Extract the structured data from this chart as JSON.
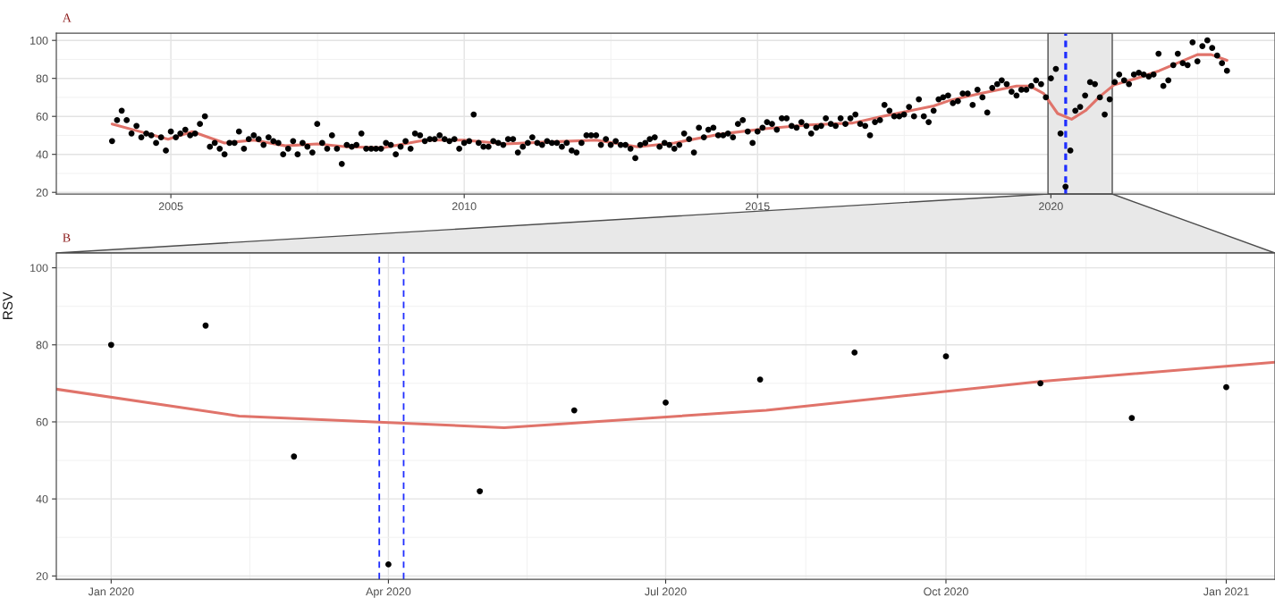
{
  "chart_data": [
    {
      "type": "scatter",
      "title": "A",
      "series": [
        {
          "color": "#000000",
          "marker": "circle",
          "x": [
            "2004-01",
            "2004-02",
            "2004-03",
            "2004-04",
            "2004-05",
            "2004-06",
            "2004-07",
            "2004-08",
            "2004-09",
            "2004-10",
            "2004-11",
            "2004-12",
            "2005-01",
            "2005-02",
            "2005-03",
            "2005-04",
            "2005-05",
            "2005-06",
            "2005-07",
            "2005-08",
            "2005-09",
            "2005-10",
            "2005-11",
            "2005-12",
            "2006-01",
            "2006-02",
            "2006-03",
            "2006-04",
            "2006-05",
            "2006-06",
            "2006-07",
            "2006-08",
            "2006-09",
            "2006-10",
            "2006-11",
            "2006-12",
            "2007-01",
            "2007-02",
            "2007-03",
            "2007-04",
            "2007-05",
            "2007-06",
            "2007-07",
            "2007-08",
            "2007-09",
            "2007-10",
            "2007-11",
            "2007-12",
            "2008-01",
            "2008-02",
            "2008-03",
            "2008-04",
            "2008-05",
            "2008-06",
            "2008-07",
            "2008-08",
            "2008-09",
            "2008-10",
            "2008-11",
            "2008-12",
            "2009-01",
            "2009-02",
            "2009-03",
            "2009-04",
            "2009-05",
            "2009-06",
            "2009-07",
            "2009-08",
            "2009-09",
            "2009-10",
            "2009-11",
            "2009-12",
            "2010-01",
            "2010-02",
            "2010-03",
            "2010-04",
            "2010-05",
            "2010-06",
            "2010-07",
            "2010-08",
            "2010-09",
            "2010-10",
            "2010-11",
            "2010-12",
            "2011-01",
            "2011-02",
            "2011-03",
            "2011-04",
            "2011-05",
            "2011-06",
            "2011-07",
            "2011-08",
            "2011-09",
            "2011-10",
            "2011-11",
            "2011-12",
            "2012-01",
            "2012-02",
            "2012-03",
            "2012-04",
            "2012-05",
            "2012-06",
            "2012-07",
            "2012-08",
            "2012-09",
            "2012-10",
            "2012-11",
            "2012-12",
            "2013-01",
            "2013-02",
            "2013-03",
            "2013-04",
            "2013-05",
            "2013-06",
            "2013-07",
            "2013-08",
            "2013-09",
            "2013-10",
            "2013-11",
            "2013-12",
            "2014-01",
            "2014-02",
            "2014-03",
            "2014-04",
            "2014-05",
            "2014-06",
            "2014-07",
            "2014-08",
            "2014-09",
            "2014-10",
            "2014-11",
            "2014-12",
            "2015-01",
            "2015-02",
            "2015-03",
            "2015-04",
            "2015-05",
            "2015-06",
            "2015-07",
            "2015-08",
            "2015-09",
            "2015-10",
            "2015-11",
            "2015-12",
            "2016-01",
            "2016-02",
            "2016-03",
            "2016-04",
            "2016-05",
            "2016-06",
            "2016-07",
            "2016-08",
            "2016-09",
            "2016-10",
            "2016-11",
            "2016-12",
            "2017-01",
            "2017-02",
            "2017-03",
            "2017-04",
            "2017-05",
            "2017-06",
            "2017-07",
            "2017-08",
            "2017-09",
            "2017-10",
            "2017-11",
            "2017-12",
            "2018-01",
            "2018-02",
            "2018-03",
            "2018-04",
            "2018-05",
            "2018-06",
            "2018-07",
            "2018-08",
            "2018-09",
            "2018-10",
            "2018-11",
            "2018-12",
            "2019-01",
            "2019-02",
            "2019-03",
            "2019-04",
            "2019-05",
            "2019-06",
            "2019-07",
            "2019-08",
            "2019-09",
            "2019-10",
            "2019-11",
            "2019-12",
            "2020-01",
            "2020-02",
            "2020-03",
            "2020-04",
            "2020-05",
            "2020-06",
            "2020-07",
            "2020-08",
            "2020-09",
            "2020-10",
            "2020-11",
            "2020-12",
            "2021-01",
            "2021-02",
            "2021-03",
            "2021-04",
            "2021-05",
            "2021-06",
            "2021-07",
            "2021-08",
            "2021-09",
            "2021-10",
            "2021-11",
            "2021-12",
            "2022-01",
            "2022-02",
            "2022-03",
            "2022-04",
            "2022-05",
            "2022-06",
            "2022-07",
            "2022-08",
            "2022-09",
            "2022-10",
            "2022-11",
            "2022-12",
            "2023-01"
          ],
          "values": [
            47,
            58,
            63,
            58,
            51,
            55,
            49,
            51,
            50,
            46,
            49,
            42,
            52,
            49,
            51,
            53,
            50,
            51,
            56,
            60,
            44,
            46,
            43,
            40,
            46,
            46,
            52,
            43,
            48,
            50,
            48,
            45,
            49,
            47,
            46,
            40,
            43,
            47,
            40,
            46,
            44,
            41,
            56,
            46,
            43,
            50,
            43,
            35,
            45,
            44,
            45,
            51,
            43,
            43,
            43,
            43,
            46,
            45,
            40,
            44,
            47,
            43,
            51,
            50,
            47,
            48,
            48,
            50,
            48,
            47,
            48,
            43,
            46,
            47,
            61,
            46,
            44,
            44,
            47,
            46,
            45,
            48,
            48,
            41,
            44,
            46,
            49,
            46,
            45,
            47,
            46,
            46,
            44,
            46,
            42,
            41,
            46,
            50,
            50,
            50,
            45,
            48,
            45,
            47,
            45,
            45,
            43,
            38,
            45,
            46,
            48,
            49,
            44,
            46,
            45,
            43,
            45,
            51,
            48,
            41,
            54,
            49,
            53,
            54,
            50,
            50,
            51,
            49,
            56,
            58,
            52,
            46,
            52,
            54,
            57,
            56,
            53,
            59,
            59,
            55,
            54,
            57,
            55,
            51,
            54,
            55,
            59,
            56,
            55,
            59,
            56,
            59,
            61,
            56,
            55,
            50,
            57,
            58,
            66,
            63,
            60,
            60,
            61,
            65,
            60,
            69,
            60,
            57,
            63,
            69,
            70,
            71,
            67,
            68,
            72,
            72,
            66,
            74,
            70,
            62,
            75,
            77,
            79,
            77,
            73,
            71,
            74,
            74,
            76,
            79,
            77,
            70,
            80,
            85,
            51,
            23,
            42,
            63,
            65,
            71,
            78,
            77,
            70,
            61,
            69,
            78,
            82,
            79,
            77,
            82,
            83,
            82,
            81,
            82,
            93,
            76,
            79,
            87,
            93,
            88,
            87,
            99,
            89,
            97,
            100,
            96,
            92,
            88,
            84
          ]
        },
        {
          "type": "line",
          "color": "#e0736a",
          "line_style": "solid",
          "x": [
            "2004-01-01",
            "2004-06-01",
            "2004-12-15",
            "2005-05-15",
            "2005-12-01",
            "2006-06-01",
            "2006-12-15",
            "2007-07-01",
            "2008-01-01",
            "2008-08-15",
            "2009-05-01",
            "2010-01-01",
            "2010-09-15",
            "2011-06-01",
            "2012-04-01",
            "2012-12-15",
            "2013-08-01",
            "2014-05-01",
            "2015-02-15",
            "2015-11-15",
            "2016-08-15",
            "2017-02-15",
            "2018-01-01",
            "2018-04-15",
            "2018-10-15",
            "2019-06-01",
            "2019-08-22",
            "2019-11-17",
            "2020-02-12",
            "2020-05-09",
            "2020-08-03",
            "2020-11-01",
            "2021-01-27",
            "2021-06-15",
            "2021-11-05",
            "2022-07-01",
            "2022-09-25",
            "2023-01-01"
          ],
          "values": [
            56,
            52.5,
            48,
            52,
            46,
            47.5,
            44.5,
            45.5,
            44,
            43.5,
            47.5,
            47.5,
            45.5,
            46.5,
            47.5,
            44,
            46,
            50.5,
            53.5,
            55.5,
            56.5,
            60,
            65.5,
            68.5,
            72,
            76,
            76,
            72,
            61.5,
            58.5,
            63,
            70.5,
            76.5,
            80,
            84,
            92.5,
            92.5,
            89.5
          ]
        }
      ],
      "xlim": [
        "2003-01-19",
        "2023-10-27"
      ],
      "xticks": [
        {
          "value": "2005-01-01",
          "label": "2005"
        },
        {
          "value": "2010-01-01",
          "label": "2010"
        },
        {
          "value": "2015-01-01",
          "label": "2015"
        },
        {
          "value": "2020-01-01",
          "label": "2020"
        }
      ],
      "ylim": [
        19.15,
        103.85
      ],
      "yticks": [
        20,
        40,
        60,
        80,
        100
      ],
      "grid": true,
      "bands": [
        {
          "axis": "x",
          "from": "2019-12-14",
          "to": "2021-01-17",
          "color": "#e8e8e8"
        }
      ],
      "ref_lines": [
        {
          "axis": "x",
          "value": "2020-03-29",
          "color": "#1f2eff",
          "line_style": "dashed"
        },
        {
          "axis": "x",
          "value": "2020-04-06",
          "color": "#1f2eff",
          "line_style": "dashed"
        }
      ]
    },
    {
      "type": "scatter",
      "title": "B",
      "ylabel": "RSV",
      "series": [
        {
          "color": "#000000",
          "marker": "circle",
          "x": [
            "2020-01-01",
            "2020-02-01",
            "2020-03-01",
            "2020-04-01",
            "2020-05-01",
            "2020-06-01",
            "2020-07-01",
            "2020-08-01",
            "2020-09-01",
            "2020-10-01",
            "2020-11-01",
            "2020-12-01",
            "2021-01-01"
          ],
          "values": [
            80,
            85,
            51,
            23,
            42,
            63,
            65,
            71,
            78,
            77,
            70,
            61,
            69
          ]
        },
        {
          "type": "line",
          "color": "#e0736a",
          "line_style": "solid",
          "x": [
            "2019-12-14",
            "2020-02-12",
            "2020-05-09",
            "2020-08-03",
            "2020-11-01",
            "2021-01-17"
          ],
          "values": [
            68.5,
            61.5,
            58.5,
            63,
            70.5,
            75.5
          ]
        }
      ],
      "xlim": [
        "2019-12-14",
        "2021-01-17"
      ],
      "xticks": [
        {
          "value": "2020-01-01",
          "label": "Jan 2020"
        },
        {
          "value": "2020-04-01",
          "label": "Apr 2020"
        },
        {
          "value": "2020-07-01",
          "label": "Jul 2020"
        },
        {
          "value": "2020-10-01",
          "label": "Oct 2020"
        },
        {
          "value": "2021-01-01",
          "label": "Jan 2021"
        }
      ],
      "ylim": [
        19.15,
        103.85
      ],
      "yticks": [
        20,
        40,
        60,
        80,
        100
      ],
      "grid": true,
      "ref_lines": [
        {
          "axis": "x",
          "value": "2020-03-29",
          "color": "#1f2eff",
          "line_style": "dashed"
        },
        {
          "axis": "x",
          "value": "2020-04-06",
          "color": "#1f2eff",
          "line_style": "dashed"
        }
      ]
    }
  ]
}
